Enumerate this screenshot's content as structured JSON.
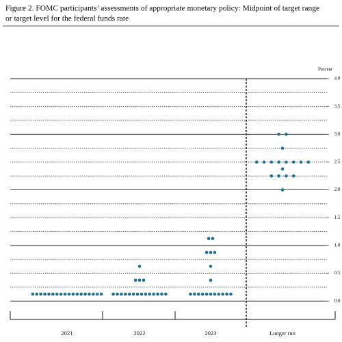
{
  "chart_data": {
    "type": "dot",
    "title": [
      "Figure 2.  FOMC participants’ assessments of appropriate monetary policy: Midpoint of target range",
      "or target level for the federal funds rate"
    ],
    "ylabel": "Percent",
    "categories": [
      "2021",
      "2022",
      "2023",
      "Longer run"
    ],
    "dots": [
      [
        {
          "value": 0.125,
          "count": 18
        }
      ],
      [
        {
          "value": 0.125,
          "count": 14
        },
        {
          "value": 0.375,
          "count": 3
        },
        {
          "value": 0.625,
          "count": 1
        }
      ],
      [
        {
          "value": 0.125,
          "count": 11
        },
        {
          "value": 0.375,
          "count": 1
        },
        {
          "value": 0.625,
          "count": 1
        },
        {
          "value": 0.875,
          "count": 3
        },
        {
          "value": 1.125,
          "count": 2
        }
      ],
      [
        {
          "value": 2.0,
          "count": 1
        },
        {
          "value": 2.25,
          "count": 4
        },
        {
          "value": 2.375,
          "count": 1
        },
        {
          "value": 2.5,
          "count": 8
        },
        {
          "value": 2.75,
          "count": 1
        },
        {
          "value": 3.0,
          "count": 2
        }
      ]
    ],
    "color": "#1f6e96",
    "ylim": [
      -0.33,
      4
    ],
    "yticks": [
      {
        "value": 0,
        "label": "0.0"
      },
      0.5,
      {
        "value": 1,
        "label": "1.0"
      },
      1.5,
      {
        "value": 2,
        "label": "2.0"
      },
      2.5,
      {
        "value": 3,
        "label": "3.0"
      },
      3.5,
      {
        "value": 4,
        "label": "4.0"
      }
    ],
    "ygrid": [
      0,
      0.25,
      0.5,
      0.75,
      1,
      1.25,
      1.5,
      1.75,
      2,
      2.25,
      2.5,
      2.75,
      3,
      3.25,
      3.5,
      3.75,
      4
    ]
  }
}
